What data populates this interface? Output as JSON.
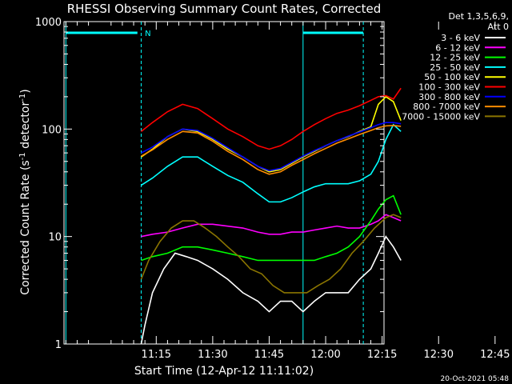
{
  "chart_data": {
    "type": "line",
    "title": "RHESSI Observing Summary Count Rates, Corrected",
    "xlabel": "Start Time (12-Apr-12 11:11:02)",
    "ylabel_main": "Corrected Count Rate (s",
    "ylabel_sup1": "-1",
    "ylabel_mid": " detector",
    "ylabel_sup2": "-1",
    "ylabel_end": ")",
    "y_scale": "log",
    "ylim": [
      1,
      1000
    ],
    "xlim_minutes": [
      -24.5,
      60.5
    ],
    "x_ticks": [
      {
        "m": 0,
        "label": "11:15"
      },
      {
        "m": 15,
        "label": "11:30"
      },
      {
        "m": 30,
        "label": "11:45"
      },
      {
        "m": 45,
        "label": "12:00"
      },
      {
        "m": 60,
        "label": "12:15"
      },
      {
        "m": 75,
        "label": "12:30"
      },
      {
        "m": 90,
        "label": "12:45"
      }
    ],
    "y_ticks": [
      {
        "v": 1,
        "label": "1"
      },
      {
        "v": 10,
        "label": "10"
      },
      {
        "v": 100,
        "label": "100"
      },
      {
        "v": 1000,
        "label": "1000"
      }
    ],
    "legend_header": [
      "Det 1,3,5,6,9,",
      "Att 0"
    ],
    "annotation": "N",
    "timestamp": "20-Oct-2021 05:48",
    "series": [
      {
        "name": "3 - 6 keV",
        "color": "#ffffff",
        "x": [
          11,
          12,
          14,
          17,
          20,
          23,
          26,
          30,
          34,
          38,
          42,
          45,
          48,
          51,
          54,
          57,
          60,
          63,
          66,
          69,
          72,
          74,
          76,
          78,
          80
        ],
        "y": [
          1,
          1.5,
          3,
          5,
          7,
          6.5,
          6,
          5,
          4,
          3,
          2.5,
          2,
          2.5,
          2.5,
          2,
          2.5,
          3,
          3,
          3,
          4,
          5,
          7,
          10,
          8,
          6
        ]
      },
      {
        "name": "6 - 12 keV",
        "color": "#ff00ff",
        "x": [
          11,
          14,
          18,
          22,
          26,
          30,
          34,
          38,
          42,
          45,
          48,
          51,
          54,
          57,
          60,
          63,
          66,
          69,
          72,
          74,
          76,
          78,
          80
        ],
        "y": [
          10,
          10.5,
          11,
          12,
          13,
          13,
          12.5,
          12,
          11,
          10.5,
          10.5,
          11,
          11,
          11.5,
          12,
          12.5,
          12,
          12,
          13,
          14,
          16,
          15,
          14
        ]
      },
      {
        "name": "12 - 25 keV",
        "color": "#00ff00",
        "x": [
          11,
          14,
          18,
          22,
          26,
          30,
          34,
          38,
          42,
          45,
          48,
          51,
          54,
          57,
          60,
          63,
          66,
          69,
          72,
          74,
          76,
          78,
          80
        ],
        "y": [
          6,
          6.5,
          7,
          8,
          8,
          7.5,
          7,
          6.5,
          6,
          6,
          6,
          6,
          6,
          6,
          6.5,
          7,
          8,
          10,
          14,
          18,
          22,
          24,
          16
        ]
      },
      {
        "name": "25 - 50 keV",
        "color": "#00ffff",
        "x": [
          11,
          14,
          18,
          22,
          26,
          30,
          34,
          38,
          42,
          45,
          48,
          51,
          54,
          57,
          60,
          63,
          66,
          69,
          72,
          74,
          76,
          78,
          80
        ],
        "y": [
          30,
          35,
          45,
          55,
          55,
          45,
          37,
          32,
          25,
          21,
          21,
          23,
          26,
          29,
          31,
          31,
          31,
          33,
          38,
          50,
          80,
          110,
          95
        ]
      },
      {
        "name": "50 - 100 keV",
        "color": "#ffff00",
        "x": [
          11,
          14,
          18,
          22,
          26,
          30,
          34,
          38,
          42,
          45,
          48,
          51,
          54,
          57,
          60,
          63,
          66,
          69,
          72,
          74,
          76,
          78,
          80
        ],
        "y": [
          55,
          65,
          85,
          100,
          95,
          80,
          65,
          55,
          45,
          40,
          42,
          48,
          55,
          62,
          70,
          78,
          85,
          95,
          105,
          170,
          200,
          180,
          120
        ]
      },
      {
        "name": "100 - 300 keV",
        "color": "#ff0000",
        "x": [
          11,
          14,
          18,
          22,
          26,
          30,
          34,
          38,
          42,
          45,
          48,
          51,
          54,
          57,
          60,
          63,
          66,
          69,
          72,
          74,
          76,
          78,
          80
        ],
        "y": [
          95,
          115,
          145,
          170,
          155,
          125,
          100,
          85,
          70,
          65,
          70,
          80,
          95,
          110,
          125,
          140,
          150,
          165,
          185,
          200,
          205,
          190,
          240
        ]
      },
      {
        "name": "300 - 800 keV",
        "color": "#0000ff",
        "x": [
          11,
          14,
          18,
          22,
          26,
          30,
          34,
          38,
          42,
          45,
          48,
          51,
          54,
          57,
          60,
          63,
          66,
          69,
          72,
          74,
          76,
          78,
          80
        ],
        "y": [
          60,
          68,
          85,
          100,
          97,
          82,
          67,
          55,
          45,
          41,
          43,
          49,
          56,
          63,
          70,
          78,
          86,
          94,
          103,
          110,
          115,
          115,
          112
        ]
      },
      {
        "name": "800 - 7000 keV",
        "color": "#ff8c00",
        "x": [
          11,
          14,
          18,
          22,
          26,
          30,
          34,
          38,
          42,
          45,
          48,
          51,
          54,
          57,
          60,
          63,
          66,
          69,
          72,
          74,
          76,
          78,
          80
        ],
        "y": [
          56,
          64,
          80,
          95,
          92,
          77,
          62,
          52,
          42,
          38,
          40,
          46,
          52,
          59,
          66,
          74,
          81,
          89,
          97,
          103,
          107,
          108,
          106
        ]
      },
      {
        "name": "7000 - 15000 keV",
        "color": "#8b7500",
        "x": [
          11,
          13,
          16,
          19,
          22,
          25,
          28,
          31,
          34,
          37,
          40,
          43,
          46,
          49,
          52,
          55,
          58,
          61,
          64,
          67,
          70,
          73,
          76,
          78,
          80
        ],
        "y": [
          4,
          6,
          9,
          12,
          14,
          14,
          12,
          10,
          8,
          6.5,
          5,
          4.5,
          3.5,
          3,
          3,
          3,
          3.5,
          4,
          5,
          7,
          9,
          12,
          15,
          16,
          15
        ]
      }
    ]
  }
}
